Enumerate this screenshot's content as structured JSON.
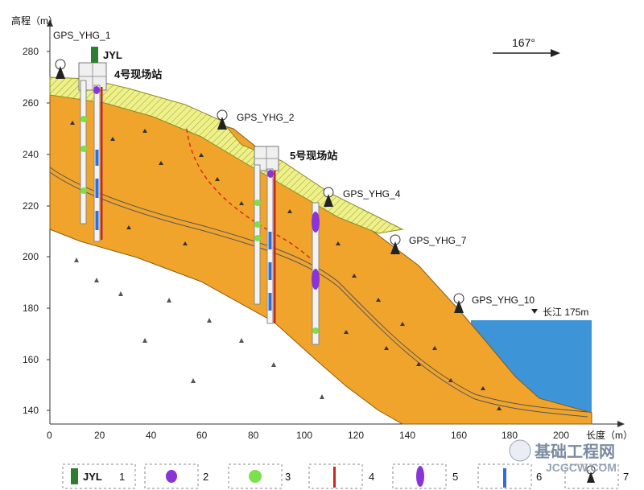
{
  "axis": {
    "y_label": "高程（m）",
    "x_label": "长度（m）",
    "y_ticks": [
      "280",
      "260",
      "240",
      "220",
      "200",
      "180",
      "160",
      "140"
    ],
    "x_ticks": [
      "0",
      "20",
      "40",
      "60",
      "80",
      "100",
      "120",
      "140",
      "160",
      "180",
      "200"
    ]
  },
  "gps": [
    "GPS_YHG_1",
    "GPS_YHG_2",
    "GPS_YHG_4",
    "GPS_YHG_7",
    "GPS_YHG_10"
  ],
  "stations": {
    "s4": "4号现场站",
    "s5": "5号现场站"
  },
  "jyl": "JYL",
  "direction": "167°",
  "river": "长江 175m",
  "legend": {
    "jyl_label": "JYL",
    "numbers": [
      "1",
      "2",
      "3",
      "4",
      "5",
      "6",
      "7"
    ]
  },
  "watermark": {
    "line1": "基础工程网",
    "line2": "JCGCW.COM"
  },
  "colors": {
    "slide": "#f0a42c",
    "topsoil": "#eef08a",
    "water": "#3d95d8",
    "bar": "#c8261e",
    "green": "#7be04a",
    "purple": "#8a34d8",
    "blue": "#2f6ed8",
    "jyl": "#2f7d2f"
  }
}
